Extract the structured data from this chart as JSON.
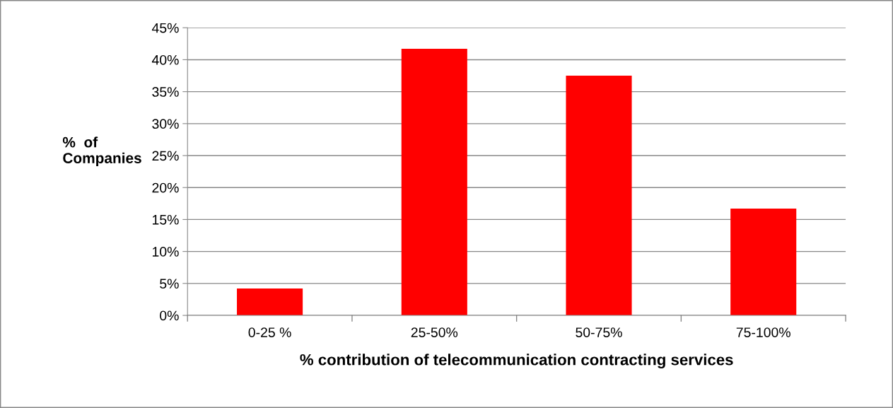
{
  "chart_data": {
    "type": "bar",
    "xlabel": "% contribution of telecommunication contracting services",
    "ylabel": "%  of\nCompanies",
    "categories": [
      "0-25 %",
      "25-50%",
      "50-75%",
      "75-100%"
    ],
    "values": [
      4.2,
      41.7,
      37.5,
      16.7
    ],
    "color": "#ff0000",
    "ylim": [
      0,
      45
    ],
    "yticks": [
      {
        "value": 0,
        "label": "0%"
      },
      {
        "value": 5,
        "label": "5%"
      },
      {
        "value": 10,
        "label": "10%"
      },
      {
        "value": 15,
        "label": "15%"
      },
      {
        "value": 20,
        "label": "20%"
      },
      {
        "value": 25,
        "label": "25%"
      },
      {
        "value": 30,
        "label": "30%"
      },
      {
        "value": 35,
        "label": "35%"
      },
      {
        "value": 40,
        "label": "40%"
      },
      {
        "value": 45,
        "label": "45%"
      }
    ],
    "grid": "y",
    "legend": false
  }
}
